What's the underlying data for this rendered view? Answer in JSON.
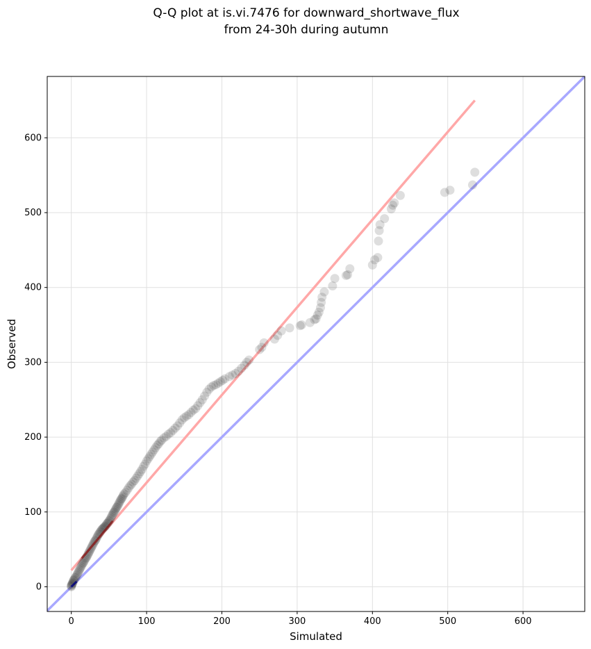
{
  "chart_data": {
    "type": "scatter",
    "title": [
      "Q-Q plot at is.vi.7476 for downward_shortwave_flux",
      "from 24-30h during autumn"
    ],
    "xlabel": "Simulated",
    "ylabel": "Observed",
    "xlim": [
      -32,
      682
    ],
    "ylim": [
      -33,
      682
    ],
    "xticks": [
      0,
      100,
      200,
      300,
      400,
      500,
      600
    ],
    "yticks": [
      0,
      100,
      200,
      300,
      400,
      500,
      600
    ],
    "grid": true,
    "colors": {
      "points": "#333333",
      "one_to_one_line": "#a8a8ff",
      "fit_line": "#ffa8a8",
      "fit_overlay": "#8b0000",
      "origin_points": "#000080"
    },
    "lines": {
      "one_to_one": {
        "x": [
          -32,
          682
        ],
        "y": [
          -32,
          682
        ]
      },
      "fit": {
        "x": [
          0,
          536
        ],
        "y": [
          22,
          650
        ]
      }
    },
    "points": [
      [
        0,
        0
      ],
      [
        0,
        1
      ],
      [
        0,
        2
      ],
      [
        1,
        3
      ],
      [
        1,
        4
      ],
      [
        2,
        5
      ],
      [
        2,
        6
      ],
      [
        3,
        8
      ],
      [
        3,
        9
      ],
      [
        4,
        10
      ],
      [
        5,
        12
      ],
      [
        6,
        13
      ],
      [
        7,
        15
      ],
      [
        8,
        17
      ],
      [
        9,
        19
      ],
      [
        10,
        21
      ],
      [
        11,
        23
      ],
      [
        12,
        25
      ],
      [
        13,
        27
      ],
      [
        14,
        29
      ],
      [
        15,
        31
      ],
      [
        16,
        32
      ],
      [
        17,
        34
      ],
      [
        18,
        36
      ],
      [
        19,
        38
      ],
      [
        20,
        39
      ],
      [
        21,
        41
      ],
      [
        22,
        43
      ],
      [
        23,
        45
      ],
      [
        24,
        47
      ],
      [
        25,
        49
      ],
      [
        26,
        51
      ],
      [
        27,
        53
      ],
      [
        28,
        55
      ],
      [
        29,
        57
      ],
      [
        30,
        59
      ],
      [
        31,
        61
      ],
      [
        32,
        62
      ],
      [
        33,
        64
      ],
      [
        34,
        66
      ],
      [
        35,
        68
      ],
      [
        36,
        70
      ],
      [
        37,
        71
      ],
      [
        38,
        73
      ],
      [
        39,
        74
      ],
      [
        40,
        76
      ],
      [
        41,
        77
      ],
      [
        42,
        78
      ],
      [
        43,
        79
      ],
      [
        44,
        80
      ],
      [
        45,
        81
      ],
      [
        46,
        82
      ],
      [
        47,
        84
      ],
      [
        48,
        85
      ],
      [
        49,
        86
      ],
      [
        50,
        88
      ],
      [
        51,
        89
      ],
      [
        52,
        91
      ],
      [
        53,
        93
      ],
      [
        54,
        95
      ],
      [
        55,
        97
      ],
      [
        56,
        99
      ],
      [
        57,
        100
      ],
      [
        58,
        102
      ],
      [
        59,
        104
      ],
      [
        60,
        106
      ],
      [
        61,
        107
      ],
      [
        62,
        109
      ],
      [
        63,
        111
      ],
      [
        64,
        113
      ],
      [
        65,
        115
      ],
      [
        66,
        117
      ],
      [
        67,
        118
      ],
      [
        68,
        120
      ],
      [
        69,
        122
      ],
      [
        70,
        124
      ],
      [
        72,
        126
      ],
      [
        74,
        129
      ],
      [
        76,
        132
      ],
      [
        78,
        135
      ],
      [
        80,
        137
      ],
      [
        82,
        140
      ],
      [
        84,
        142
      ],
      [
        86,
        145
      ],
      [
        88,
        148
      ],
      [
        90,
        151
      ],
      [
        92,
        154
      ],
      [
        94,
        157
      ],
      [
        96,
        161
      ],
      [
        98,
        164
      ],
      [
        100,
        168
      ],
      [
        102,
        171
      ],
      [
        104,
        174
      ],
      [
        106,
        177
      ],
      [
        108,
        180
      ],
      [
        110,
        183
      ],
      [
        112,
        186
      ],
      [
        114,
        189
      ],
      [
        116,
        191
      ],
      [
        118,
        194
      ],
      [
        120,
        196
      ],
      [
        123,
        199
      ],
      [
        126,
        201
      ],
      [
        129,
        204
      ],
      [
        132,
        206
      ],
      [
        135,
        209
      ],
      [
        138,
        212
      ],
      [
        141,
        215
      ],
      [
        144,
        219
      ],
      [
        147,
        223
      ],
      [
        150,
        226
      ],
      [
        153,
        228
      ],
      [
        156,
        230
      ],
      [
        159,
        233
      ],
      [
        162,
        236
      ],
      [
        165,
        238
      ],
      [
        168,
        242
      ],
      [
        171,
        246
      ],
      [
        174,
        250
      ],
      [
        177,
        255
      ],
      [
        180,
        260
      ],
      [
        183,
        264
      ],
      [
        186,
        267
      ],
      [
        189,
        269
      ],
      [
        192,
        270
      ],
      [
        195,
        272
      ],
      [
        198,
        274
      ],
      [
        201,
        276
      ],
      [
        204,
        278
      ],
      [
        210,
        281
      ],
      [
        214,
        283
      ],
      [
        218,
        285
      ],
      [
        222,
        288
      ],
      [
        226,
        292
      ],
      [
        230,
        296
      ],
      [
        233,
        300
      ],
      [
        236,
        303
      ],
      [
        250,
        317
      ],
      [
        253,
        320
      ],
      [
        256,
        326
      ],
      [
        270,
        331
      ],
      [
        274,
        336
      ],
      [
        279,
        342
      ],
      [
        290,
        346
      ],
      [
        304,
        349
      ],
      [
        306,
        350
      ],
      [
        317,
        353
      ],
      [
        323,
        357
      ],
      [
        325,
        358
      ],
      [
        327,
        363
      ],
      [
        329,
        367
      ],
      [
        331,
        373
      ],
      [
        332,
        380
      ],
      [
        333,
        387
      ],
      [
        336,
        394
      ],
      [
        347,
        402
      ],
      [
        350,
        412
      ],
      [
        365,
        416
      ],
      [
        367,
        417
      ],
      [
        370,
        425
      ],
      [
        400,
        430
      ],
      [
        403,
        437
      ],
      [
        407,
        440
      ],
      [
        408,
        462
      ],
      [
        409,
        476
      ],
      [
        410,
        484
      ],
      [
        416,
        492
      ],
      [
        425,
        505
      ],
      [
        427,
        510
      ],
      [
        429,
        513
      ],
      [
        437,
        523
      ],
      [
        496,
        527
      ],
      [
        503,
        530
      ],
      [
        533,
        537
      ],
      [
        536,
        554
      ]
    ]
  }
}
